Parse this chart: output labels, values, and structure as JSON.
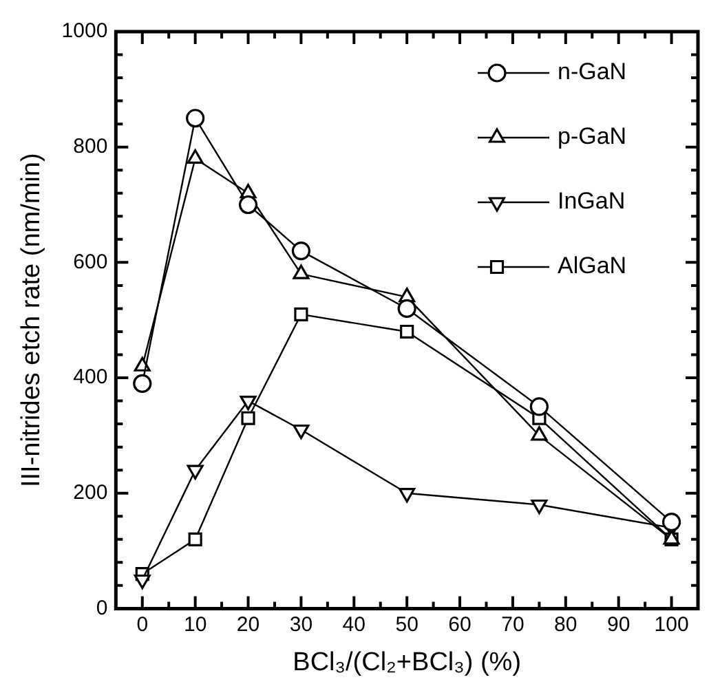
{
  "chart_data": {
    "type": "line",
    "xlabel": "BCl₃/(Cl₂+BCl₃) (%)",
    "ylabel": "III-nitrides etch rate (nm/min)",
    "x": [
      0,
      10,
      20,
      30,
      50,
      75,
      100
    ],
    "xlim": [
      -5,
      105
    ],
    "xticks": [
      0,
      10,
      20,
      30,
      40,
      50,
      60,
      70,
      80,
      90,
      100
    ],
    "ylim": [
      0,
      1000
    ],
    "yticks": [
      0,
      200,
      400,
      600,
      800,
      1000
    ],
    "grid": false,
    "legend": "top right",
    "line_style": "solid",
    "series": [
      {
        "name": "n-GaN",
        "color": "#000000",
        "marker": "circle",
        "values": [
          390,
          850,
          700,
          620,
          520,
          350,
          150
        ]
      },
      {
        "name": "p-GaN",
        "color": "#000000",
        "marker": "triangle",
        "values": [
          420,
          780,
          720,
          580,
          540,
          300,
          120
        ]
      },
      {
        "name": "InGaN",
        "color": "#000000",
        "marker": "triangle-down",
        "values": [
          50,
          240,
          360,
          310,
          200,
          180,
          140
        ]
      },
      {
        "name": "AlGaN",
        "color": "#000000",
        "marker": "square",
        "values": [
          60,
          120,
          330,
          510,
          480,
          330,
          120
        ]
      }
    ]
  }
}
